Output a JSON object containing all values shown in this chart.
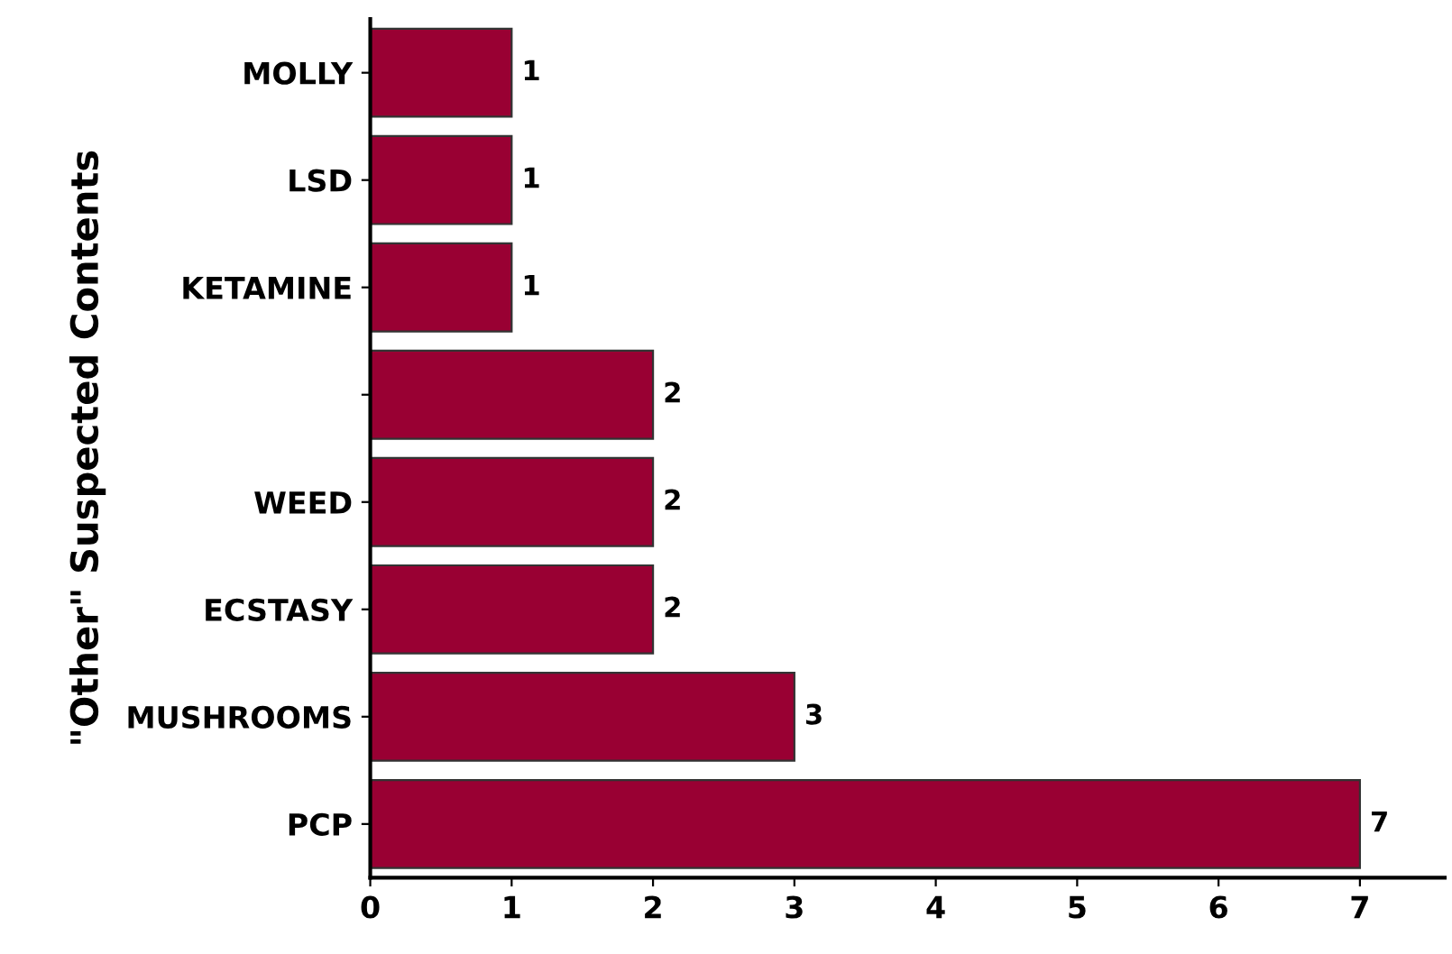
{
  "chart_data": {
    "type": "bar",
    "orientation": "horizontal",
    "ylabel": "\"Other\" Suspected Contents",
    "categories": [
      "MOLLY",
      "LSD",
      "KETAMINE",
      null,
      "WEED",
      "ECSTASY",
      "MUSHROOMS",
      "PCP"
    ],
    "values": [
      1,
      1,
      1,
      2,
      2,
      2,
      3,
      7
    ],
    "color": "#990033",
    "xlim": [
      0,
      7.6
    ],
    "xticks": [
      0,
      1,
      2,
      3,
      4,
      5,
      6,
      7
    ],
    "data_labels": true
  }
}
